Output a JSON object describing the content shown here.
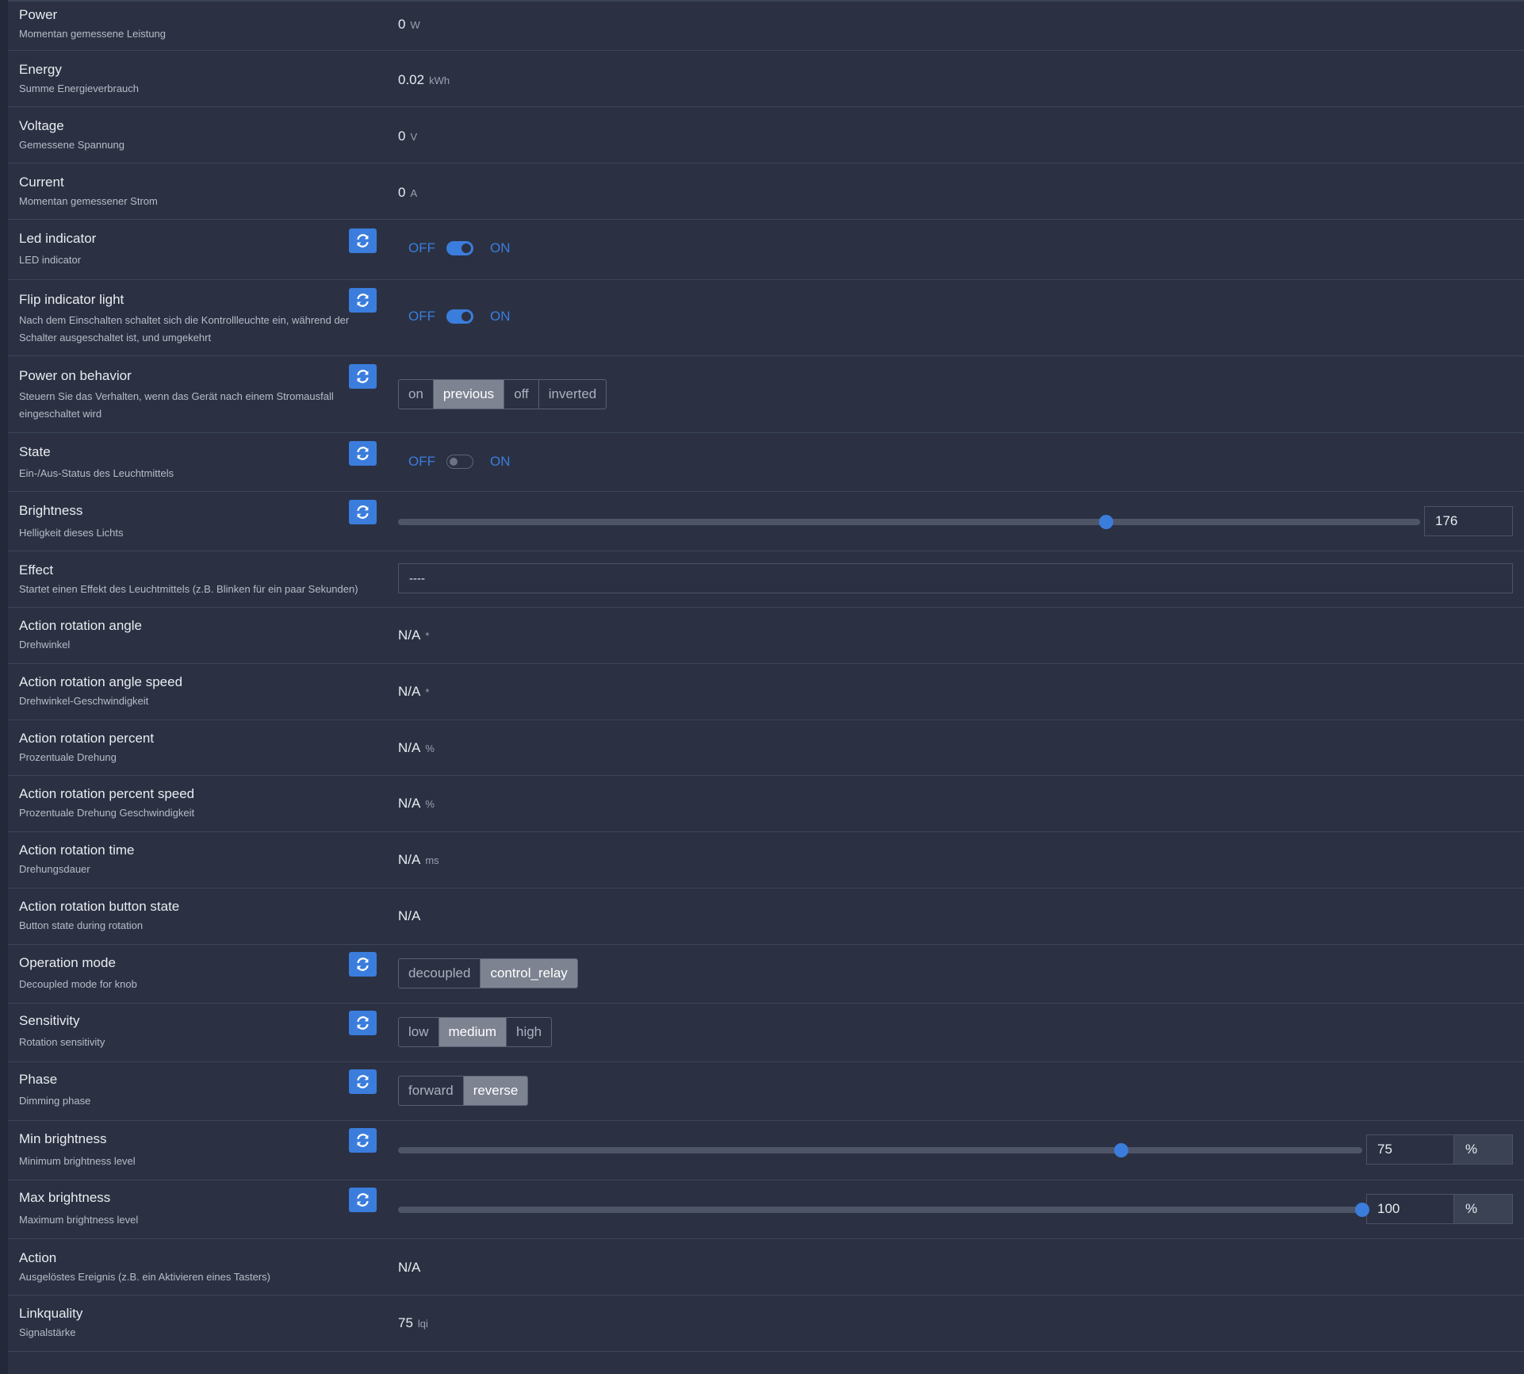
{
  "rows": {
    "power": {
      "title": "Power",
      "desc": "Momentan gemessene Leistung",
      "value": "0",
      "unit": "W"
    },
    "energy": {
      "title": "Energy",
      "desc": "Summe Energieverbrauch",
      "value": "0.02",
      "unit": "kWh"
    },
    "voltage": {
      "title": "Voltage",
      "desc": "Gemessene Spannung",
      "value": "0",
      "unit": "V"
    },
    "current": {
      "title": "Current",
      "desc": "Momentan gemessener Strom",
      "value": "0",
      "unit": "A"
    },
    "led_indicator": {
      "title": "Led indicator",
      "desc": "LED indicator",
      "off": "OFF",
      "on": "ON",
      "state": "on"
    },
    "flip_indicator": {
      "title": "Flip indicator light",
      "desc": "Nach dem Einschalten schaltet sich die Kontrollleuchte ein, während der Schalter ausgeschaltet ist, und umgekehrt",
      "off": "OFF",
      "on": "ON",
      "state": "on"
    },
    "power_on_behavior": {
      "title": "Power on behavior",
      "desc": "Steuern Sie das Verhalten, wenn das Gerät nach einem Stromausfall eingeschaltet wird",
      "options": [
        "on",
        "previous",
        "off",
        "inverted"
      ],
      "selected": "previous"
    },
    "state": {
      "title": "State",
      "desc": "Ein-/Aus-Status des Leuchtmittels",
      "off": "OFF",
      "on": "ON",
      "state": "off"
    },
    "brightness": {
      "title": "Brightness",
      "desc": "Helligkeit dieses Lichts",
      "value": "176",
      "min": 0,
      "max": 254
    },
    "effect": {
      "title": "Effect",
      "desc": "Startet einen Effekt des Leuchtmittels (z.B. Blinken für ein paar Sekunden)",
      "value": "----"
    },
    "action_rotation_angle": {
      "title": "Action rotation angle",
      "desc": "Drehwinkel",
      "value": "N/A",
      "unit": "*"
    },
    "action_rotation_angle_speed": {
      "title": "Action rotation angle speed",
      "desc": "Drehwinkel-Geschwindigkeit",
      "value": "N/A",
      "unit": "*"
    },
    "action_rotation_percent": {
      "title": "Action rotation percent",
      "desc": "Prozentuale Drehung",
      "value": "N/A",
      "unit": "%"
    },
    "action_rotation_percent_speed": {
      "title": "Action rotation percent speed",
      "desc": "Prozentuale Drehung Geschwindigkeit",
      "value": "N/A",
      "unit": "%"
    },
    "action_rotation_time": {
      "title": "Action rotation time",
      "desc": "Drehungsdauer",
      "value": "N/A",
      "unit": "ms"
    },
    "action_rotation_button_state": {
      "title": "Action rotation button state",
      "desc": "Button state during rotation",
      "value": "N/A"
    },
    "operation_mode": {
      "title": "Operation mode",
      "desc": "Decoupled mode for knob",
      "options": [
        "decoupled",
        "control_relay"
      ],
      "selected": "control_relay"
    },
    "sensitivity": {
      "title": "Sensitivity",
      "desc": "Rotation sensitivity",
      "options": [
        "low",
        "medium",
        "high"
      ],
      "selected": "medium"
    },
    "phase": {
      "title": "Phase",
      "desc": "Dimming phase",
      "options": [
        "forward",
        "reverse"
      ],
      "selected": "reverse"
    },
    "min_brightness": {
      "title": "Min brightness",
      "desc": "Minimum brightness level",
      "value": "75",
      "unit": "%",
      "min": 0,
      "max": 100
    },
    "max_brightness": {
      "title": "Max brightness",
      "desc": "Maximum brightness level",
      "value": "100",
      "unit": "%",
      "min": 0,
      "max": 100
    },
    "action": {
      "title": "Action",
      "desc": "Ausgelöstes Ereignis (z.B. ein Aktivieren eines Tasters)",
      "value": "N/A"
    },
    "linkquality": {
      "title": "Linkquality",
      "desc": "Signalstärke",
      "value": "75",
      "unit": "lqi"
    }
  },
  "colors": {
    "accent": "#3b7ddd",
    "background": "#2b3143",
    "selected_button": "#7d8391"
  },
  "icons": {
    "refresh": "refresh-icon"
  }
}
